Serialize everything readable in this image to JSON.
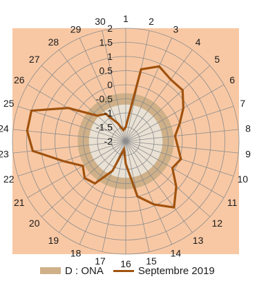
{
  "chart_data": {
    "type": "radar",
    "categories": [
      "1",
      "2",
      "3",
      "4",
      "5",
      "6",
      "7",
      "8",
      "9",
      "10",
      "11",
      "12",
      "13",
      "14",
      "15",
      "16",
      "17",
      "18",
      "19",
      "20",
      "21",
      "22",
      "23",
      "24",
      "25",
      "26",
      "27",
      "28",
      "29",
      "30"
    ],
    "radial_ticks": [
      "-2",
      "-1.5",
      "-1",
      "-0.5",
      "0",
      "0.5",
      "1",
      "1.5",
      "2"
    ],
    "rlim": [
      -2,
      2
    ],
    "grid": true,
    "legend_position": "bottom",
    "band": {
      "name": "D : ONA",
      "outer_fill_color": "#f8c8a4",
      "band_color": "#cfb088",
      "inner_fill_color": "#e9e1d4",
      "outer_bound": 2,
      "band_min": -0.7,
      "band_max": -0.3
    },
    "series": [
      {
        "name": "Septembre 2019",
        "color": "#a0520e",
        "values": [
          -1.5,
          0.6,
          0.9,
          0.7,
          0.7,
          0.35,
          0.0,
          -0.25,
          -0.15,
          0.05,
          -0.1,
          0.4,
          0.9,
          0.45,
          0.0,
          -1.2,
          -1.7,
          -0.85,
          -0.15,
          -0.05,
          -0.25,
          0.3,
          1.3,
          1.5,
          1.5,
          0.35,
          -0.65,
          -0.8,
          -1.3,
          -1.6
        ]
      }
    ]
  }
}
